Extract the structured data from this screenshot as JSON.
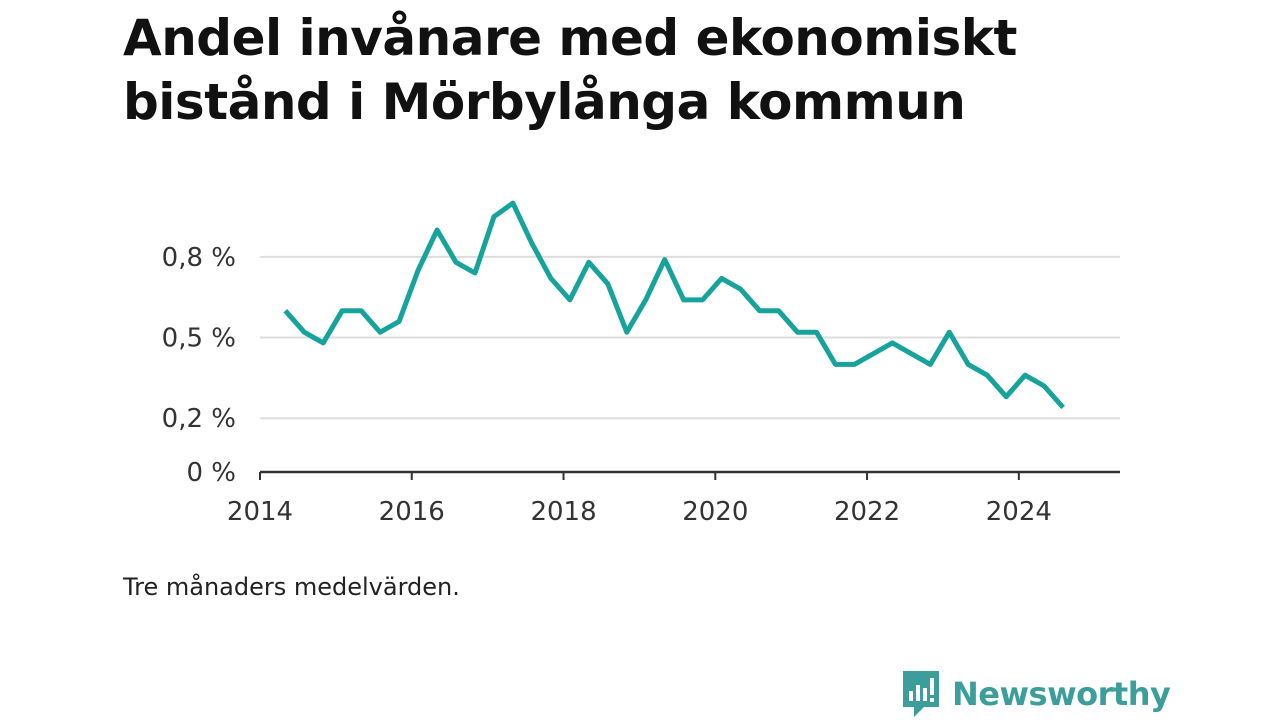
{
  "title": "Andel invånare med ekonomiskt bistånd i Mörbylånga kommun",
  "caption": "Tre månaders medelvärden.",
  "brand": {
    "name": "Newsworthy",
    "logo_icon": "newsworthy-logo-icon",
    "color": "#3b9e9a"
  },
  "colors": {
    "line": "#16a39b",
    "grid": "#dddddd",
    "axis": "#333333"
  },
  "chart_data": {
    "type": "line",
    "title": "Andel invånare med ekonomiskt bistånd i Mörbylånga kommun",
    "xlabel": "",
    "ylabel": "",
    "x_ticks": [
      "2014",
      "2016",
      "2018",
      "2020",
      "2022",
      "2024"
    ],
    "y_ticks": [
      "0 %",
      "0,2 %",
      "0,5 %",
      "0,8 %"
    ],
    "y_tick_values": [
      0,
      0.2,
      0.5,
      0.8
    ],
    "xlim": [
      "2014-01",
      "2025-05"
    ],
    "ylim": [
      0,
      0.9
    ],
    "grid": true,
    "x": [
      "2014-05",
      "2014-08",
      "2014-11",
      "2015-02",
      "2015-05",
      "2015-08",
      "2015-11",
      "2016-02",
      "2016-05",
      "2016-08",
      "2016-11",
      "2017-02",
      "2017-05",
      "2017-08",
      "2017-11",
      "2018-02",
      "2018-05",
      "2018-08",
      "2018-11",
      "2019-02",
      "2019-05",
      "2019-08",
      "2019-11",
      "2020-02",
      "2020-05",
      "2020-08",
      "2020-11",
      "2021-02",
      "2021-05",
      "2021-08",
      "2021-11",
      "2022-02",
      "2022-05",
      "2022-08",
      "2022-11",
      "2023-02",
      "2023-05",
      "2023-08",
      "2023-11",
      "2024-02",
      "2024-05",
      "2024-08"
    ],
    "series": [
      {
        "values": [
          0.6,
          0.52,
          0.48,
          0.6,
          0.6,
          0.52,
          0.56,
          0.75,
          0.9,
          0.78,
          0.74,
          0.95,
          1.0,
          0.85,
          0.72,
          0.64,
          0.78,
          0.7,
          0.52,
          0.64,
          0.79,
          0.64,
          0.64,
          0.72,
          0.68,
          0.6,
          0.6,
          0.52,
          0.52,
          0.4,
          0.4,
          0.44,
          0.48,
          0.44,
          0.4,
          0.52,
          0.4,
          0.36,
          0.28,
          0.36,
          0.32,
          0.24
        ]
      }
    ]
  }
}
